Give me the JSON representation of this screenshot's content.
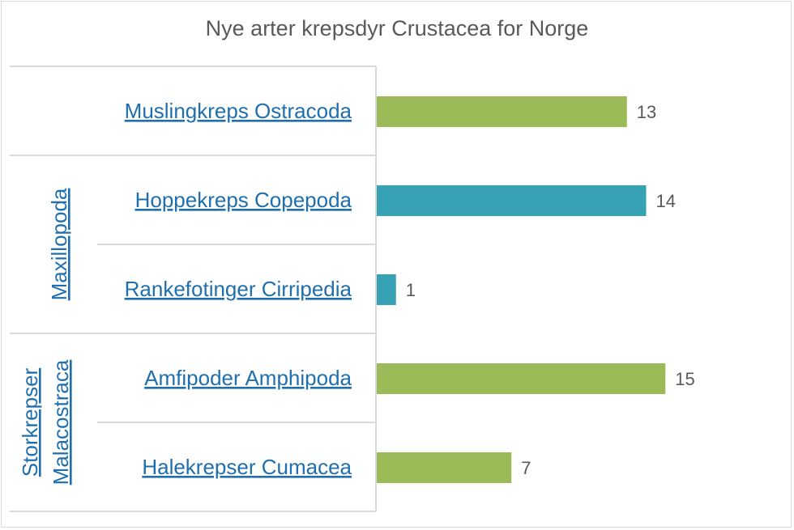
{
  "chart_data": {
    "type": "bar",
    "orientation": "horizontal",
    "title": "Nye arter krepsdyr Crustacea for Norge",
    "categories": [
      "Muslingkreps Ostracoda",
      "Hoppekreps Copepoda",
      "Rankefotinger Cirripedia",
      "Amfipoder Amphipoda",
      "Halekrepser Cumacea"
    ],
    "groups": [
      {
        "name": "",
        "members": [
          "Muslingkreps Ostracoda"
        ]
      },
      {
        "name": "Maxillopoda",
        "members": [
          "Hoppekreps Copepoda",
          "Rankefotinger Cirripedia"
        ]
      },
      {
        "name_lines": [
          "Storkrepser",
          "Malacostraca"
        ],
        "members": [
          "Amfipoder Amphipoda",
          "Halekrepser Cumacea"
        ]
      }
    ],
    "values": [
      13,
      14,
      1,
      15,
      7
    ],
    "bar_colors": [
      "#9bbb59",
      "#36a2b4",
      "#36a2b4",
      "#9bbb59",
      "#9bbb59"
    ],
    "xlim": [
      0,
      18
    ],
    "grid": false,
    "legend": "none",
    "data_labels": true
  }
}
